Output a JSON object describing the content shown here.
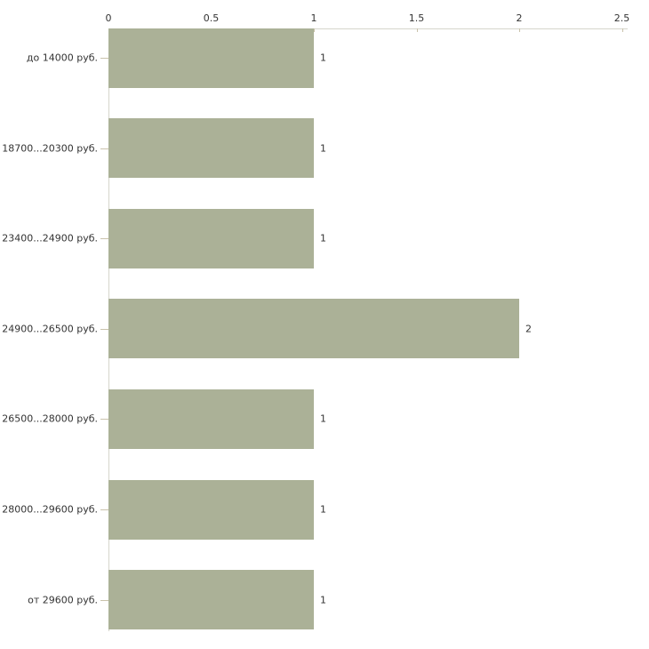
{
  "chart_data": {
    "type": "bar",
    "orientation": "horizontal",
    "title": "",
    "xlabel": "",
    "ylabel": "",
    "categories": [
      "до 14000 руб.",
      "18700...20300 руб.",
      "23400...24900 руб.",
      "24900...26500 руб.",
      "26500...28000 руб.",
      "28000...29600 руб.",
      "от 29600 руб."
    ],
    "values": [
      1,
      1,
      1,
      2,
      1,
      1,
      1
    ],
    "value_labels": [
      "1",
      "1",
      "1",
      "2",
      "1",
      "1",
      "1"
    ],
    "x_ticks": [
      0,
      0.5,
      1,
      1.5,
      2,
      2.5
    ],
    "x_tick_labels": [
      "0",
      "0.5",
      "1",
      "1.5",
      "2",
      "2.5"
    ],
    "xlim": [
      0,
      2.5
    ],
    "axis_position": "top",
    "grid": false,
    "legend": "none"
  },
  "colors": {
    "bar": "#abb197",
    "axis_line": "#d6d6cc",
    "tick_mark": "#c9c2ab",
    "text": "#333333",
    "background": "#ffffff"
  }
}
